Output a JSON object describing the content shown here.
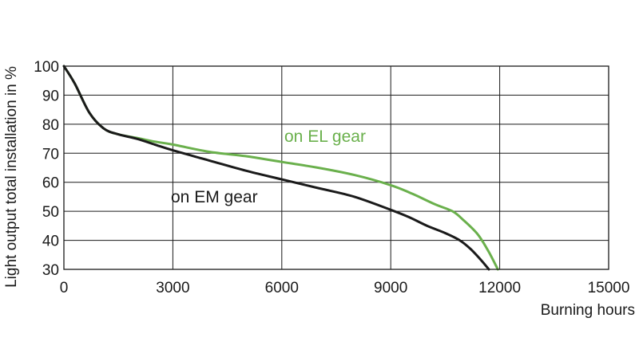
{
  "chart_data": {
    "type": "line",
    "title": "",
    "xlabel": "Burning hours",
    "ylabel": "Light output total installation in %",
    "xlim": [
      0,
      15000
    ],
    "ylim": [
      30,
      100
    ],
    "x_ticks": [
      "0",
      "3000",
      "6000",
      "9000",
      "12000",
      "15000"
    ],
    "y_ticks": [
      "100",
      "90",
      "80",
      "70",
      "60",
      "50",
      "40",
      "30"
    ],
    "grid": true,
    "legend": "inline labels",
    "series": [
      {
        "name": "on EL gear",
        "color": "#6ab04c",
        "x": [
          0,
          300,
          700,
          1100,
          1500,
          2000,
          2500,
          3000,
          4000,
          5000,
          6000,
          7000,
          8000,
          9000,
          9600,
          10200,
          10700,
          11000,
          11400,
          11700,
          11950
        ],
        "y": [
          100,
          94,
          84,
          78.5,
          76.5,
          75.3,
          74,
          73,
          70.5,
          69,
          67,
          65,
          62.5,
          59,
          56,
          52.5,
          50,
          47,
          42,
          36,
          30
        ]
      },
      {
        "name": "on EM gear",
        "color": "#1a1a1a",
        "x": [
          0,
          300,
          700,
          1100,
          1500,
          2000,
          2500,
          3000,
          4000,
          5000,
          6000,
          7000,
          8000,
          9000,
          9500,
          10000,
          10500,
          10900,
          11200,
          11500,
          11700
        ],
        "y": [
          100,
          94,
          84,
          78.5,
          76.5,
          75,
          73,
          71,
          67.5,
          64,
          61,
          58,
          55,
          50.5,
          48,
          45,
          42.5,
          40,
          37,
          33,
          30
        ]
      }
    ]
  }
}
